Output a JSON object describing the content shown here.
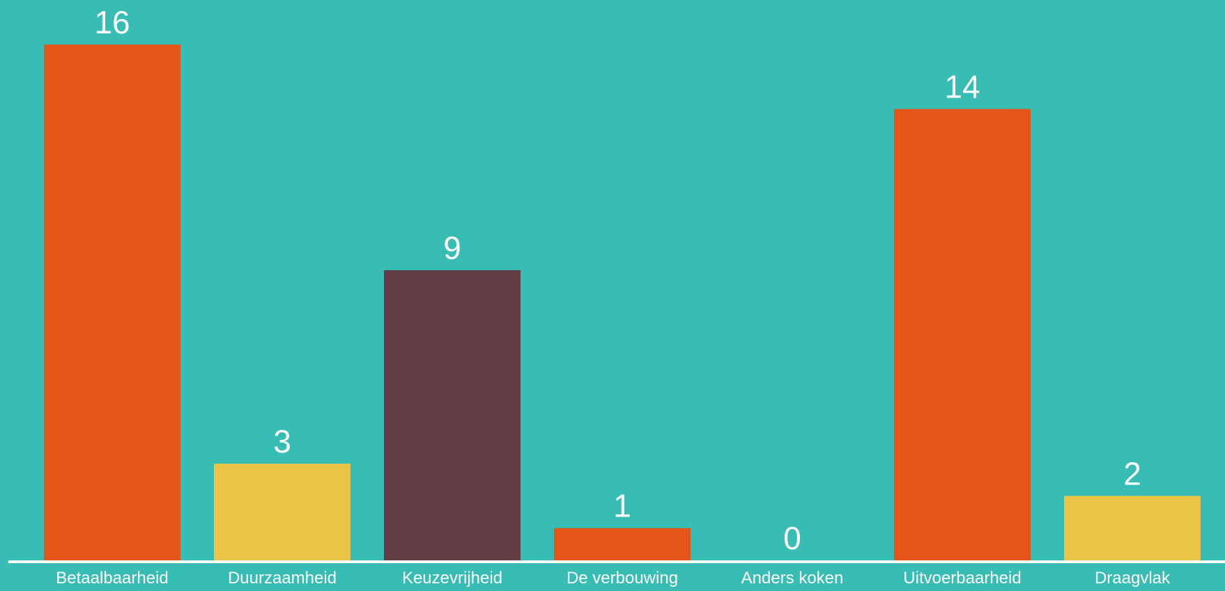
{
  "colors": {
    "background": "#37BDB4",
    "orange": "#E55419",
    "yellow": "#EAC447",
    "maroon": "#633C44",
    "text": "#FFFFFF",
    "axis": "#FFFFFF"
  },
  "chart_data": {
    "type": "bar",
    "categories": [
      "Betaalbaarheid",
      "Duurzaamheid",
      "Keuzevrijheid",
      "De verbouwing",
      "Anders koken",
      "Uitvoerbaarheid",
      "Draagvlak"
    ],
    "values": [
      16,
      3,
      9,
      1,
      0,
      14,
      2
    ],
    "bar_colors": [
      "#E55419",
      "#EAC447",
      "#633C44",
      "#E55419",
      "#E55419",
      "#E55419",
      "#EAC447"
    ],
    "data_labels": [
      "16",
      "3",
      "9",
      "1",
      "0",
      "14",
      "2"
    ],
    "title": "",
    "xlabel": "",
    "ylabel": "",
    "ylim": [
      0,
      16
    ],
    "grid": false,
    "legend": "none"
  }
}
